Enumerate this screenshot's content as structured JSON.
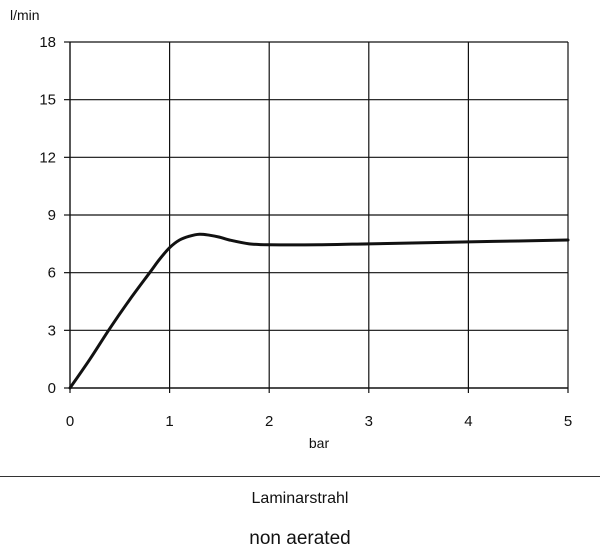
{
  "chart_data": {
    "type": "line",
    "title": "",
    "xlabel": "bar",
    "ylabel": "l/min",
    "xlim": [
      0,
      5
    ],
    "ylim": [
      0,
      18
    ],
    "x_ticks": [
      0,
      1,
      2,
      3,
      4,
      5
    ],
    "y_ticks": [
      0,
      3,
      6,
      9,
      12,
      15,
      18
    ],
    "grid": true,
    "series": [
      {
        "color": "#111111",
        "points": [
          [
            0,
            0
          ],
          [
            0.2,
            1.5
          ],
          [
            0.4,
            3.1
          ],
          [
            0.6,
            4.6
          ],
          [
            0.8,
            6.0
          ],
          [
            0.9,
            6.7
          ],
          [
            1.0,
            7.3
          ],
          [
            1.1,
            7.7
          ],
          [
            1.2,
            7.9
          ],
          [
            1.3,
            8.0
          ],
          [
            1.4,
            7.95
          ],
          [
            1.5,
            7.85
          ],
          [
            1.6,
            7.7
          ],
          [
            1.8,
            7.5
          ],
          [
            2.0,
            7.45
          ],
          [
            2.5,
            7.45
          ],
          [
            3.0,
            7.5
          ],
          [
            3.5,
            7.55
          ],
          [
            4.0,
            7.6
          ],
          [
            4.5,
            7.65
          ],
          [
            5.0,
            7.7
          ]
        ]
      }
    ]
  },
  "caption": "Laminarstrahl",
  "subcaption": "non aerated"
}
